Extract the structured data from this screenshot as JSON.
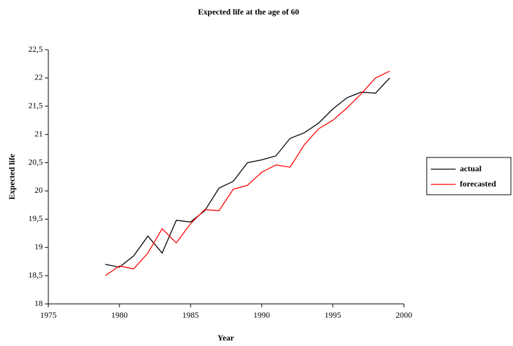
{
  "chart_data": {
    "type": "line",
    "title": "Expected life at the age of 60",
    "x_label": "Year",
    "y_label": "Expected life",
    "x": [
      1979,
      1980,
      1981,
      1982,
      1983,
      1984,
      1985,
      1986,
      1987,
      1988,
      1989,
      1990,
      1991,
      1992,
      1993,
      1994,
      1995,
      1996,
      1997,
      1998,
      1999
    ],
    "series": [
      {
        "name": "actual",
        "color": "#000000",
        "values": [
          18.7,
          18.65,
          18.85,
          19.2,
          18.9,
          19.48,
          19.45,
          19.65,
          20.05,
          20.17,
          20.5,
          20.55,
          20.62,
          20.93,
          21.03,
          21.2,
          21.45,
          21.65,
          21.75,
          21.73,
          22.0
        ]
      },
      {
        "name": "forecasted",
        "color": "#ff0000",
        "values": [
          18.5,
          18.67,
          18.62,
          18.9,
          19.33,
          19.08,
          19.42,
          19.67,
          19.65,
          20.03,
          20.1,
          20.33,
          20.46,
          20.42,
          20.82,
          21.1,
          21.25,
          21.47,
          21.72,
          22.0,
          22.12
        ]
      }
    ],
    "xlim": [
      1975,
      2000
    ],
    "xticks": [
      1975,
      1980,
      1985,
      1990,
      1995,
      2000
    ],
    "ylim": [
      18,
      22.5
    ],
    "yticks": [
      18,
      {
        "value": 18.5,
        "label": "18,5"
      },
      19,
      {
        "value": 19.5,
        "label": "19,5"
      },
      20,
      {
        "value": 20.5,
        "label": "20,5"
      },
      21,
      {
        "value": 21.5,
        "label": "21,5"
      },
      22,
      {
        "value": 22.5,
        "label": "22,5"
      }
    ],
    "grid": false,
    "legend": "right"
  }
}
